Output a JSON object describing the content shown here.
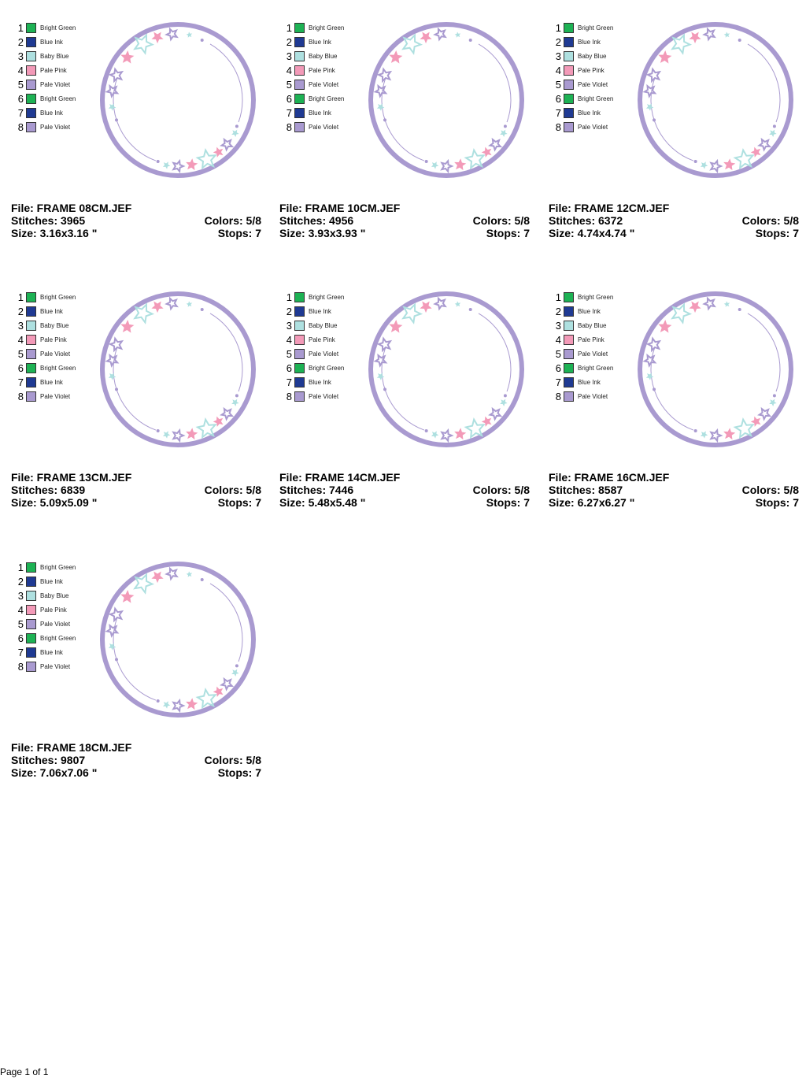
{
  "colors": {
    "Bright Green": "#1db254",
    "Blue Ink": "#1f3a93",
    "Baby Blue": "#aee0e0",
    "Pale Pink": "#f39ab8",
    "Pale Violet": "#a99ad0"
  },
  "palette": [
    {
      "num": "1",
      "name": "Bright Green"
    },
    {
      "num": "2",
      "name": "Blue Ink"
    },
    {
      "num": "3",
      "name": "Baby Blue"
    },
    {
      "num": "4",
      "name": "Pale Pink"
    },
    {
      "num": "5",
      "name": "Pale Violet"
    },
    {
      "num": "6",
      "name": "Bright Green"
    },
    {
      "num": "7",
      "name": "Blue Ink"
    },
    {
      "num": "8",
      "name": "Pale Violet"
    }
  ],
  "designs": [
    {
      "file": "File: FRAME 08CM.JEF",
      "stitches": "Stitches: 3965",
      "size": "Size: 3.16x3.16 \"",
      "colors": "Colors: 5/8",
      "stops": "Stops: 7"
    },
    {
      "file": "File: FRAME 10CM.JEF",
      "stitches": "Stitches: 4956",
      "size": "Size: 3.93x3.93 \"",
      "colors": "Colors: 5/8",
      "stops": "Stops: 7"
    },
    {
      "file": "File: FRAME 12CM.JEF",
      "stitches": "Stitches: 6372",
      "size": "Size: 4.74x4.74 \"",
      "colors": "Colors: 5/8",
      "stops": "Stops: 7"
    },
    {
      "file": "File: FRAME 13CM.JEF",
      "stitches": "Stitches: 6839",
      "size": "Size: 5.09x5.09 \"",
      "colors": "Colors: 5/8",
      "stops": "Stops: 7"
    },
    {
      "file": "File: FRAME 14CM.JEF",
      "stitches": "Stitches: 7446",
      "size": "Size: 5.48x5.48 \"",
      "colors": "Colors: 5/8",
      "stops": "Stops: 7"
    },
    {
      "file": "File: FRAME 16CM.JEF",
      "stitches": "Stitches: 8587",
      "size": "Size: 6.27x6.27 \"",
      "colors": "Colors: 5/8",
      "stops": "Stops: 7"
    },
    {
      "file": "File: FRAME 18CM.JEF",
      "stitches": "Stitches: 9807",
      "size": "Size: 7.06x7.06 \"",
      "colors": "Colors: 5/8",
      "stops": "Stops: 7"
    }
  ],
  "footer": {
    "page": "Page 1 of 1"
  }
}
